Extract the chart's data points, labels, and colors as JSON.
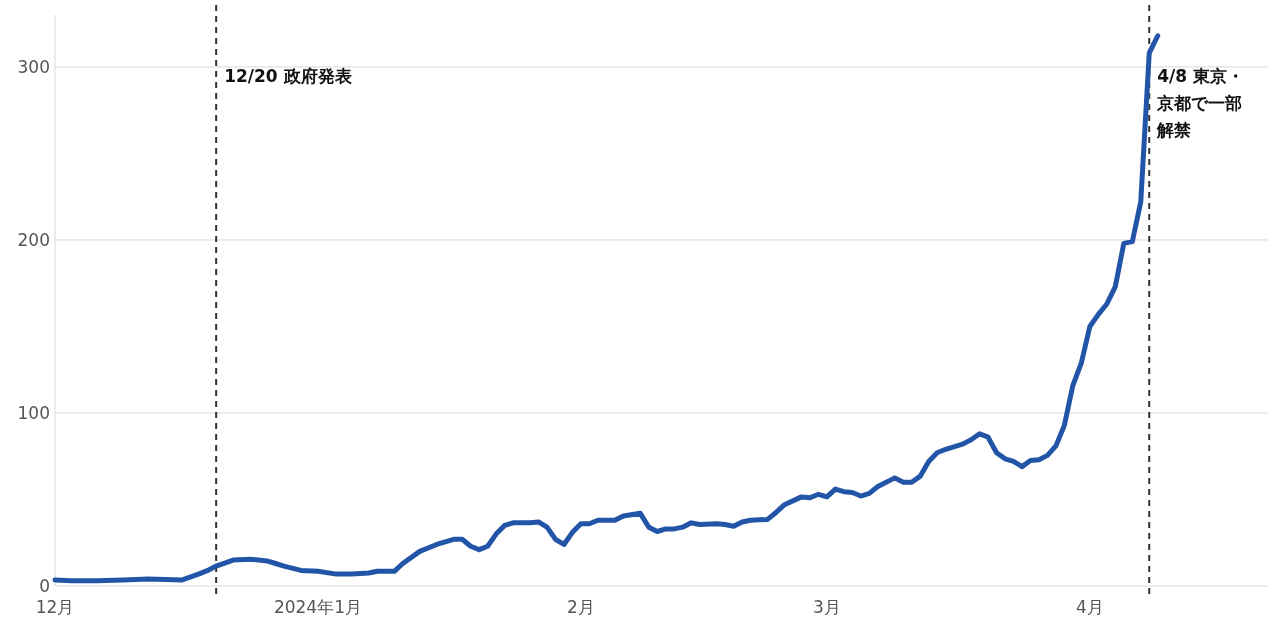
{
  "chart_data": {
    "type": "line",
    "x": [
      "2023-12-01",
      "2023-12-03",
      "2023-12-06",
      "2023-12-09",
      "2023-12-12",
      "2023-12-16",
      "2023-12-18",
      "2023-12-19",
      "2023-12-20",
      "2023-12-22",
      "2023-12-24",
      "2023-12-26",
      "2023-12-27",
      "2023-12-28",
      "2023-12-30",
      "2024-01-01",
      "2024-01-03",
      "2024-01-05",
      "2024-01-07",
      "2024-01-08",
      "2024-01-10",
      "2024-01-11",
      "2024-01-13",
      "2024-01-15",
      "2024-01-17",
      "2024-01-18",
      "2024-01-19",
      "2024-01-20",
      "2024-01-21",
      "2024-01-22",
      "2024-01-23",
      "2024-01-24",
      "2024-01-26",
      "2024-01-27",
      "2024-01-28",
      "2024-01-29",
      "2024-01-30",
      "2024-01-31",
      "2024-02-01",
      "2024-02-02",
      "2024-02-03",
      "2024-02-05",
      "2024-02-06",
      "2024-02-08",
      "2024-02-09",
      "2024-02-10",
      "2024-02-11",
      "2024-02-12",
      "2024-02-13",
      "2024-02-14",
      "2024-02-15",
      "2024-02-17",
      "2024-02-18",
      "2024-02-19",
      "2024-02-20",
      "2024-02-21",
      "2024-02-23",
      "2024-02-24",
      "2024-02-25",
      "2024-02-27",
      "2024-02-28",
      "2024-02-29",
      "2024-03-01",
      "2024-03-02",
      "2024-03-03",
      "2024-03-04",
      "2024-03-05",
      "2024-03-06",
      "2024-03-07",
      "2024-03-09",
      "2024-03-10",
      "2024-03-11",
      "2024-03-12",
      "2024-03-13",
      "2024-03-14",
      "2024-03-15",
      "2024-03-17",
      "2024-03-18",
      "2024-03-19",
      "2024-03-20",
      "2024-03-21",
      "2024-03-22",
      "2024-03-23",
      "2024-03-24",
      "2024-03-25",
      "2024-03-26",
      "2024-03-27",
      "2024-03-28",
      "2024-03-29",
      "2024-03-30",
      "2024-03-31",
      "2024-04-01",
      "2024-04-02",
      "2024-04-03",
      "2024-04-04",
      "2024-04-05",
      "2024-04-06",
      "2024-04-07",
      "2024-04-08",
      "2024-04-09"
    ],
    "values": [
      3.5,
      3,
      3,
      3.5,
      4,
      3.5,
      7,
      9,
      11.5,
      15,
      15.5,
      14.5,
      13,
      11.5,
      9,
      8.5,
      7,
      7,
      7.5,
      8.5,
      8.5,
      13,
      20,
      24,
      27,
      27,
      23,
      21,
      23,
      30,
      35,
      36.5,
      36.5,
      37,
      34,
      27,
      24,
      31,
      36,
      36,
      38,
      38,
      40.5,
      42,
      34,
      31.5,
      33,
      33,
      34,
      36.5,
      35.5,
      36,
      35.5,
      34.5,
      37,
      38,
      38.5,
      42.5,
      47,
      51.5,
      51,
      53,
      51.5,
      56,
      54.5,
      54,
      52,
      53.5,
      57.5,
      62.5,
      60,
      60,
      63.5,
      72,
      77,
      79,
      82,
      84.5,
      88,
      86,
      77,
      73.5,
      72,
      69,
      72.5,
      73,
      75.5,
      81,
      93,
      116,
      129,
      150,
      157,
      163,
      173,
      198,
      199,
      222,
      308,
      318
    ],
    "color": "#2255a8",
    "xlim": [
      "2023-12-01",
      "2024-04-22"
    ],
    "xticks": [
      {
        "value": "2023-12-01",
        "label": "12月"
      },
      {
        "value": "2024-01-01",
        "label": "2024年1月"
      },
      {
        "value": "2024-02-01",
        "label": "2月"
      },
      {
        "value": "2024-03-01",
        "label": "3月"
      },
      {
        "value": "2024-04-01",
        "label": "4月"
      }
    ],
    "ylim": [
      0,
      330
    ],
    "yticks": [
      0,
      100,
      200,
      300
    ],
    "grid": "y",
    "ref_lines": [
      {
        "axis": "x",
        "value": "2023-12-20",
        "label": "12/20 政府発表",
        "color": "#333333",
        "line_style": "dashed"
      },
      {
        "axis": "x",
        "value": "2024-04-08",
        "label": "4/8 東京・京都で一部解禁",
        "color": "#333333",
        "line_style": "dashed"
      }
    ]
  }
}
